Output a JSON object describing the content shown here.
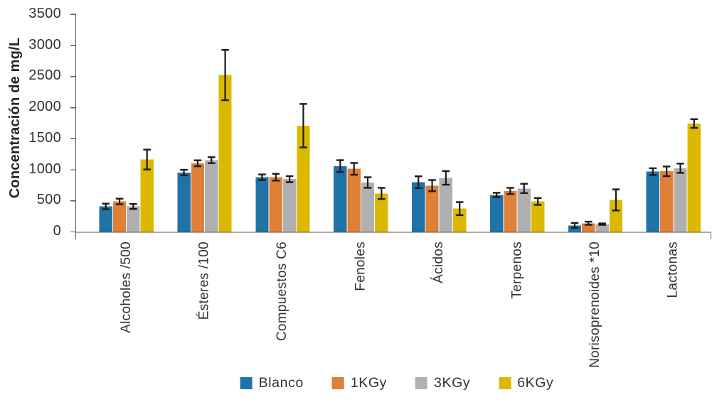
{
  "chart_data": {
    "type": "bar",
    "title": "",
    "xlabel": "",
    "ylabel": "Concentración de mg/L",
    "ylim": [
      0,
      3500
    ],
    "ytick_step": 500,
    "yticks": [
      0,
      500,
      1000,
      1500,
      2000,
      2500,
      3000,
      3500
    ],
    "grid": false,
    "error_bars": true,
    "legend_position": "bottom",
    "categories": [
      "Alcoholes /500",
      "Ésteres /100",
      "Compuestos C6",
      "Fenoles",
      "Ácidos",
      "Terpenos",
      "Norisoprenoides *10",
      "Lactonas"
    ],
    "series": [
      {
        "name": "Blanco",
        "color": "#2073A6",
        "values": [
          410,
          955,
          880,
          1060,
          800,
          595,
          105,
          970
        ],
        "errors": [
          45,
          45,
          45,
          95,
          95,
          35,
          40,
          55
        ]
      },
      {
        "name": "1KGy",
        "color": "#E07F36",
        "values": [
          490,
          1105,
          880,
          1015,
          745,
          660,
          140,
          975
        ],
        "errors": [
          45,
          48,
          55,
          95,
          90,
          50,
          25,
          78
        ]
      },
      {
        "name": "3KGy",
        "color": "#B0B0B0",
        "values": [
          410,
          1155,
          850,
          795,
          870,
          700,
          125,
          1025
        ],
        "errors": [
          40,
          48,
          48,
          85,
          110,
          75,
          12,
          75
        ]
      },
      {
        "name": "6KGy",
        "color": "#DCB900",
        "values": [
          1165,
          2525,
          1710,
          620,
          375,
          490,
          515,
          1745
        ],
        "errors": [
          160,
          405,
          350,
          90,
          105,
          55,
          170,
          70
        ]
      }
    ]
  },
  "colors": {
    "axis": "#595959",
    "error_bar": "#1A1A1A",
    "text": "#333333",
    "background": "#FFFFFF"
  }
}
